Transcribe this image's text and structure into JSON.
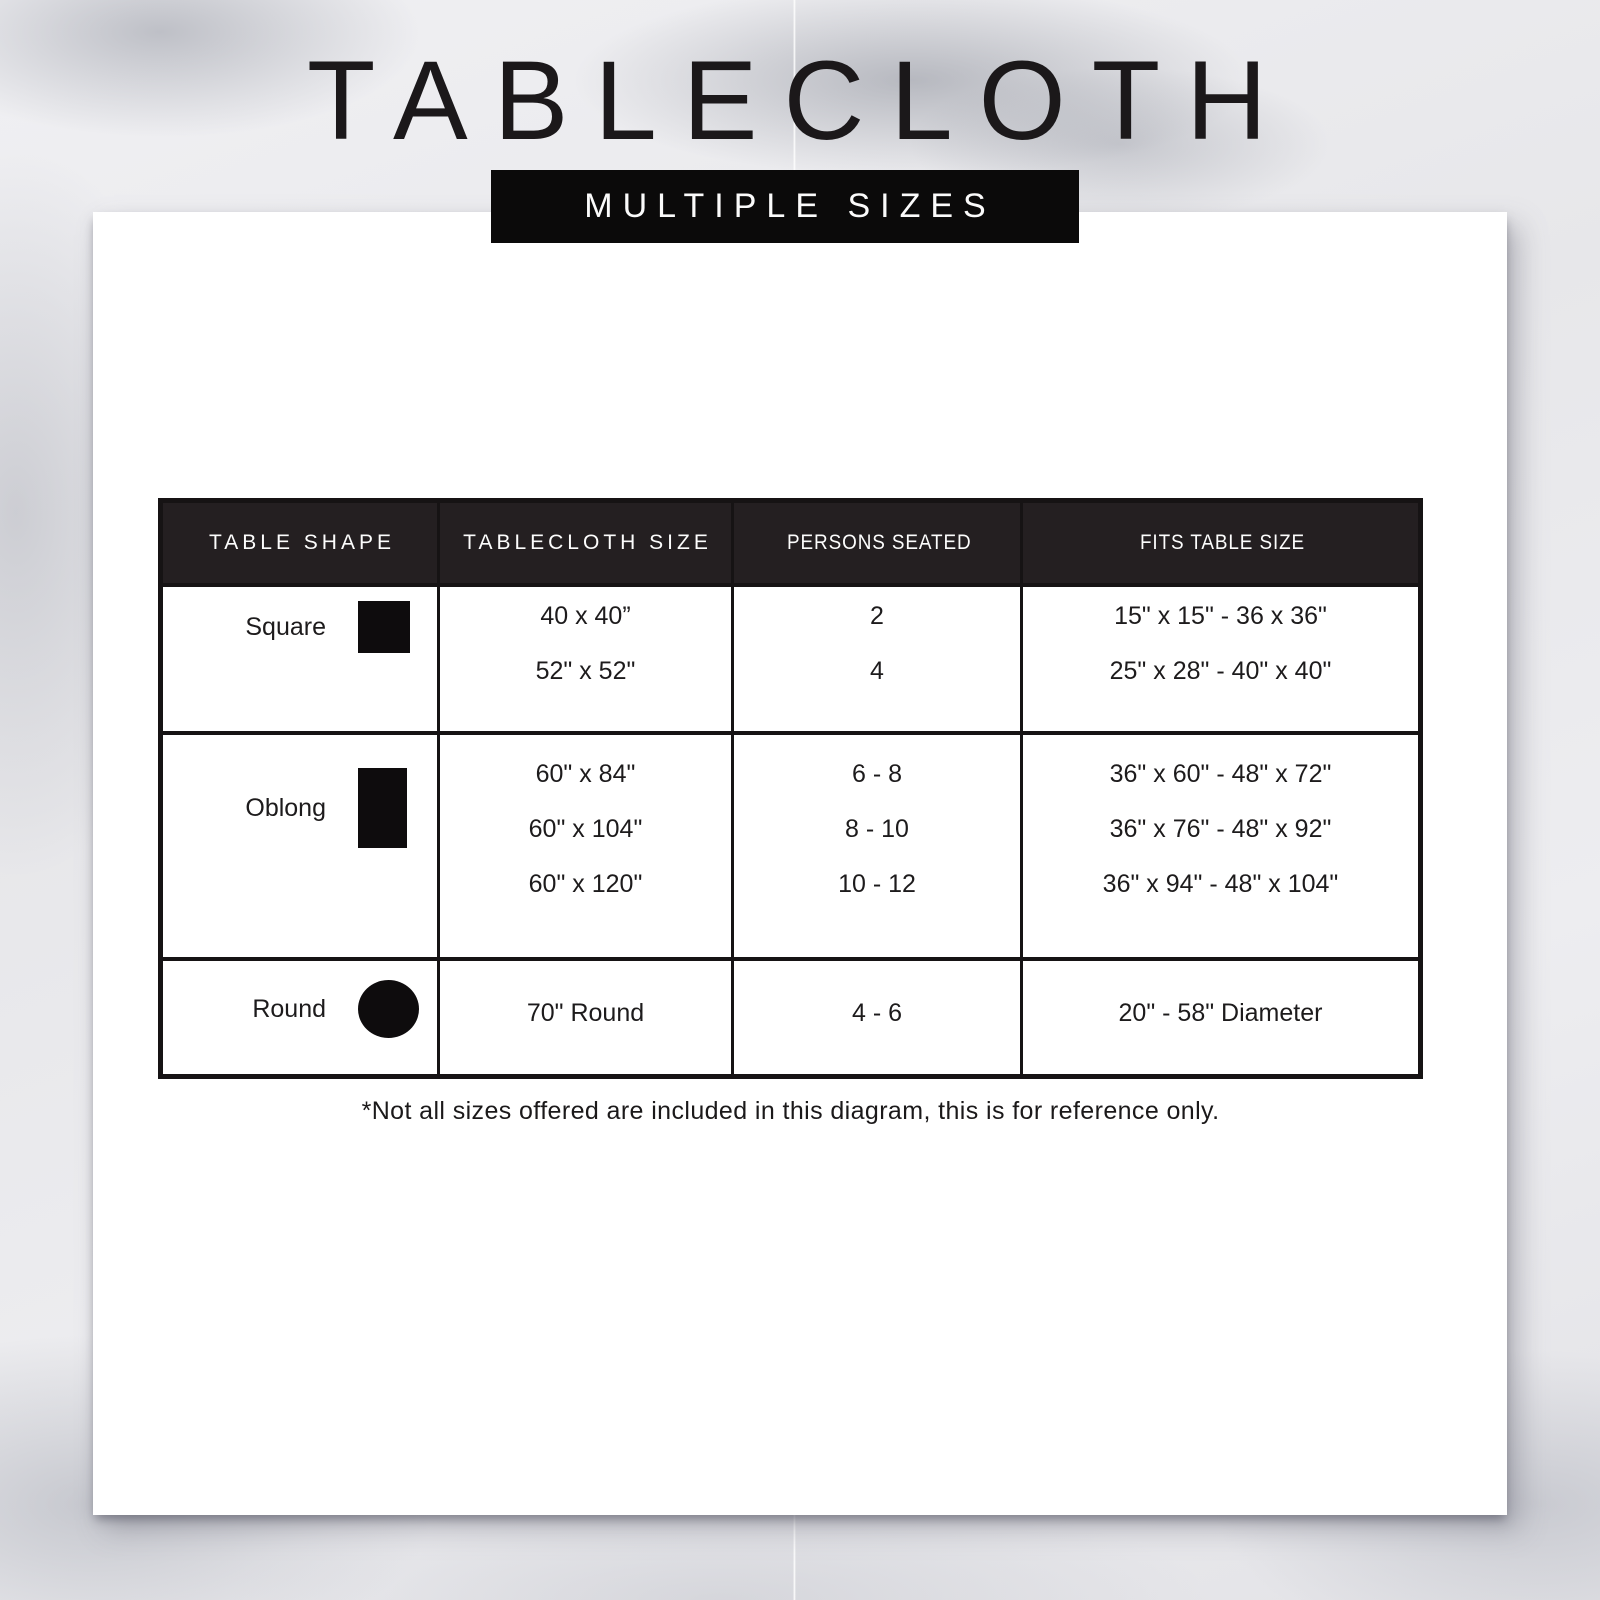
{
  "page": {
    "title": "TABLECLOTH",
    "subtitle": "MULTIPLE SIZES",
    "footnote": "*Not all sizes offered are included in this diagram, this is for reference only."
  },
  "colors": {
    "marble_background": "#e9e9ec",
    "card_background": "#ffffff",
    "banner_background": "#0b0a0a",
    "table_header_background": "#241f21",
    "table_border": "#161314",
    "text": "#1d1b1c"
  },
  "icons": {
    "square": "square-icon",
    "oblong": "oblong-icon",
    "round": "circle-icon"
  },
  "chart_data": {
    "type": "table",
    "columns": [
      "TABLE SHAPE",
      "TABLECLOTH SIZE",
      "PERSONS SEATED",
      "FITS TABLE SIZE"
    ],
    "rows": [
      {
        "shape": "Square",
        "icon": "square-icon",
        "tablecloth_sizes": [
          "40 x 40”",
          "52\" x 52\""
        ],
        "persons_seated": [
          "2",
          "4"
        ],
        "fits_table_size": [
          "15\" x 15\" - 36 x 36\"",
          "25\" x 28\" - 40\" x 40\""
        ]
      },
      {
        "shape": "Oblong",
        "icon": "oblong-icon",
        "tablecloth_sizes": [
          "60\" x 84\"",
          "60\" x 104\"",
          "60\" x 120\""
        ],
        "persons_seated": [
          "6 - 8",
          "8 - 10",
          "10 - 12"
        ],
        "fits_table_size": [
          "36\" x 60\" - 48\" x 72\"",
          "36\" x 76\" - 48\" x 92\"",
          "36\" x 94\" - 48\" x 104\""
        ]
      },
      {
        "shape": "Round",
        "icon": "circle-icon",
        "tablecloth_sizes": [
          "70\" Round"
        ],
        "persons_seated": [
          "4 - 6"
        ],
        "fits_table_size": [
          "20\" - 58\" Diameter"
        ]
      }
    ]
  }
}
